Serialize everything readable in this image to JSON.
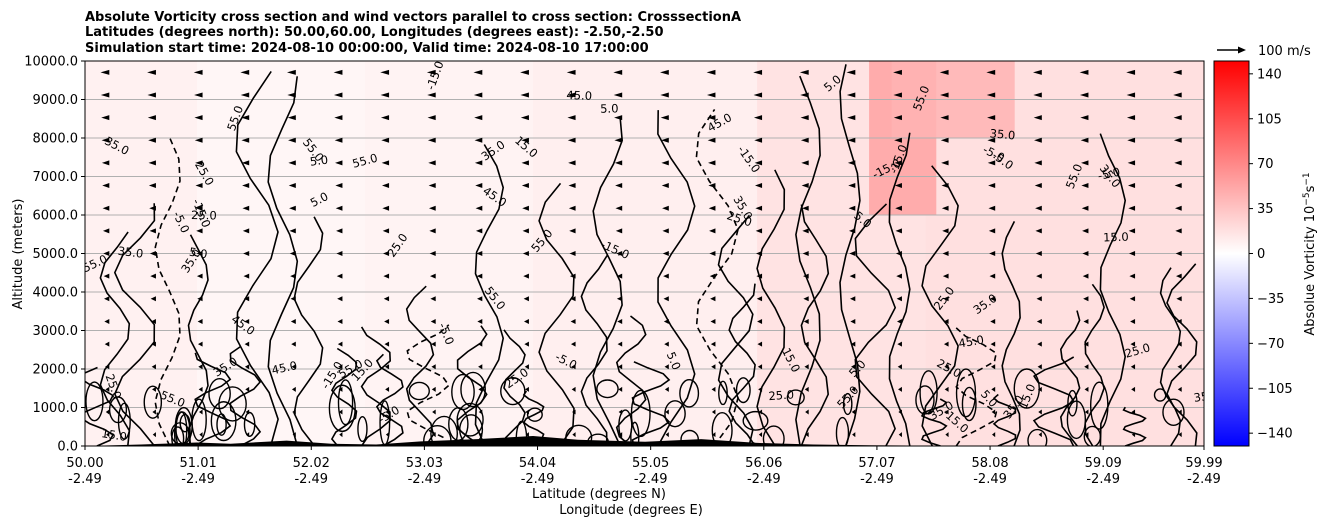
{
  "chart_data": {
    "type": "heatmap",
    "title_lines": [
      "Absolute Vorticity cross section and wind vectors parallel to cross section: CrosssectionA",
      "Latitudes (degrees north): 50.00,60.00, Longitudes (degrees east): -2.50,-2.50",
      "Simulation start time: 2024-08-10 00:00:00, Valid time: 2024-08-10 17:00:00"
    ],
    "xlabel_line1": "Latitude (degrees N)",
    "xlabel_line2": "Longitude (degrees E)",
    "ylabel": "Altitude (meters)",
    "x_ticks": [
      {
        "lat": "50.00",
        "lon": "-2.49"
      },
      {
        "lat": "51.01",
        "lon": "-2.49"
      },
      {
        "lat": "52.02",
        "lon": "-2.49"
      },
      {
        "lat": "53.03",
        "lon": "-2.49"
      },
      {
        "lat": "54.04",
        "lon": "-2.49"
      },
      {
        "lat": "55.05",
        "lon": "-2.49"
      },
      {
        "lat": "56.06",
        "lon": "-2.49"
      },
      {
        "lat": "57.07",
        "lon": "-2.49"
      },
      {
        "lat": "58.08",
        "lon": "-2.49"
      },
      {
        "lat": "59.09",
        "lon": "-2.49"
      },
      {
        "lat": "59.99",
        "lon": "-2.49"
      }
    ],
    "xlim": [
      50.0,
      59.99
    ],
    "y_ticks": [
      "0.0",
      "1000.0",
      "2000.0",
      "3000.0",
      "4000.0",
      "5000.0",
      "6000.0",
      "7000.0",
      "8000.0",
      "9000.0",
      "10000.0"
    ],
    "ylim": [
      0,
      10000
    ],
    "grid": "horizontal",
    "colorbar": {
      "label": "Absolue Vorticity 10",
      "label_exp": "−5",
      "label_unit": "s",
      "label_unit_exp": "−1",
      "ticks": [
        "140",
        "105",
        "70",
        "35",
        "0",
        "−35",
        "−70",
        "−105",
        "−140"
      ],
      "range": [
        -150,
        150
      ],
      "colors": {
        "high": "#ff0000",
        "mid": "#ffffff",
        "low": "#0000ff"
      }
    },
    "wind_key": {
      "label": "100 m/s"
    },
    "contour_labels": [
      "5.0",
      "15.0",
      "25.0",
      "35.0",
      "45.0",
      "55.0",
      "-5.0",
      "-15.0"
    ],
    "pink_regions": [
      {
        "lat_from": 50.0,
        "lat_to": 51.0,
        "alt_from": 0,
        "alt_to": 10000,
        "vort": 8
      },
      {
        "lat_from": 51.0,
        "lat_to": 52.5,
        "alt_from": 0,
        "alt_to": 10000,
        "vort": 5
      },
      {
        "lat_from": 52.5,
        "lat_to": 54.0,
        "alt_from": 0,
        "alt_to": 10000,
        "vort": 7
      },
      {
        "lat_from": 54.0,
        "lat_to": 56.0,
        "alt_from": 0,
        "alt_to": 10000,
        "vort": 10
      },
      {
        "lat_from": 56.0,
        "lat_to": 57.5,
        "alt_from": 0,
        "alt_to": 10000,
        "vort": 18
      },
      {
        "lat_from": 57.5,
        "lat_to": 59.99,
        "alt_from": 0,
        "alt_to": 10000,
        "vort": 20
      },
      {
        "lat_from": 57.0,
        "lat_to": 57.6,
        "alt_from": 6000,
        "alt_to": 10000,
        "vort": 55
      },
      {
        "lat_from": 57.2,
        "lat_to": 58.3,
        "alt_from": 8000,
        "alt_to": 10000,
        "vort": 45
      }
    ],
    "terrain": [
      [
        50.0,
        0
      ],
      [
        50.5,
        40
      ],
      [
        51.0,
        90
      ],
      [
        51.3,
        60
      ],
      [
        51.8,
        140
      ],
      [
        52.2,
        60
      ],
      [
        52.6,
        40
      ],
      [
        53.0,
        120
      ],
      [
        53.5,
        180
      ],
      [
        54.0,
        260
      ],
      [
        54.4,
        160
      ],
      [
        55.0,
        110
      ],
      [
        55.5,
        180
      ],
      [
        56.0,
        80
      ],
      [
        56.5,
        40
      ],
      [
        57.0,
        20
      ],
      [
        57.5,
        10
      ],
      [
        58.0,
        0
      ],
      [
        59.99,
        0
      ]
    ]
  }
}
